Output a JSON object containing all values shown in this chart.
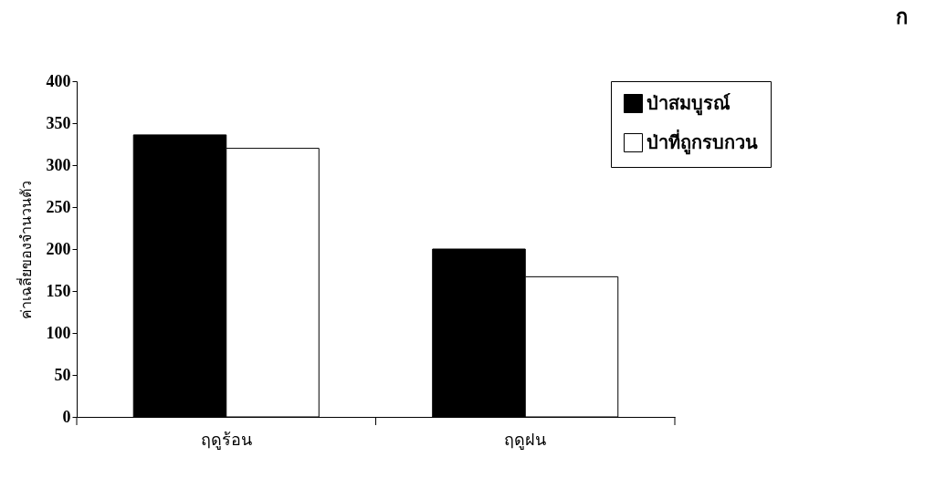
{
  "chart_data": {
    "type": "bar",
    "ylabel": "ค่าเฉลี่ยของจำนวนตัว",
    "categories": [
      "ฤดูร้อน",
      "ฤดูฝน"
    ],
    "series": [
      {
        "name": "ป่าสมบูรณ์",
        "color": "#000000",
        "values": [
          336,
          200
        ]
      },
      {
        "name": "ป่าที่ถูกรบกวน",
        "color": "#ffffff",
        "values": [
          320,
          167
        ]
      }
    ],
    "ylim": [
      0,
      400
    ],
    "yticks": [
      0,
      50,
      100,
      150,
      200,
      250,
      300,
      350,
      400
    ],
    "grid": false,
    "legend": "top right",
    "annotations": [
      "ก"
    ]
  }
}
